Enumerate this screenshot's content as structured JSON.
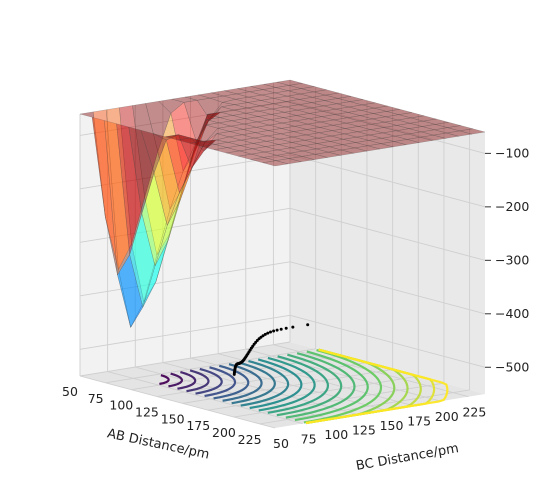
{
  "chart_data": {
    "type": "surface3d",
    "title": "",
    "xlabel": "AB Distance/pm",
    "ylabel": "BC Distance/pm",
    "zlabel": "",
    "x_ticks": [
      50,
      75,
      100,
      125,
      150,
      175,
      200,
      225
    ],
    "y_ticks": [
      50,
      75,
      100,
      125,
      150,
      175,
      200,
      225
    ],
    "z_ticks": [
      -100,
      -200,
      -300,
      -400,
      -500
    ],
    "xlim": [
      50,
      240
    ],
    "ylim": [
      50,
      240
    ],
    "zlim": [
      -550,
      -60
    ],
    "surface_colormap": "jet",
    "contour_colormap": "viridis",
    "trajectory_color": "#000000",
    "grid": true
  }
}
